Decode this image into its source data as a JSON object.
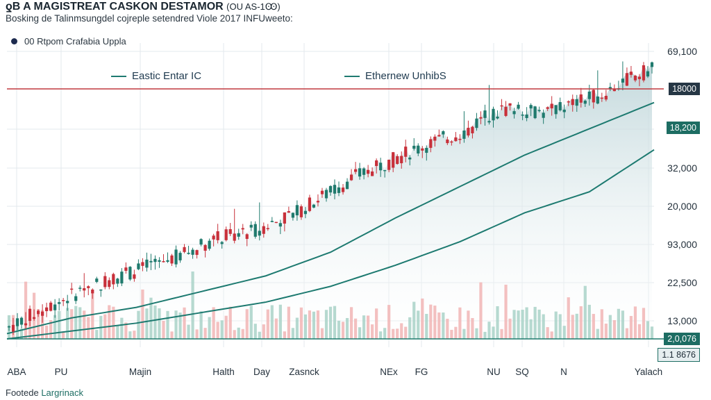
{
  "header": {
    "title": "ƍB A MAGISTREAT CASKON DESTAMOR",
    "title_code": "(OU AS-1Ꙭ)",
    "subtitle": "Bosking de Talinmsungdel cojreple setendred Viole 2017 INFUweeto:"
  },
  "legend_top": {
    "label": "00 Rtpom Crafabia Uppla"
  },
  "footer": {
    "prefix": "Footede ",
    "accent": "Largrinack"
  },
  "colors": {
    "up": "#1f7a6d",
    "down": "#c8303a",
    "line": "#1d7a70",
    "reference": "#c0393f",
    "area_top": "#bfd6da",
    "vol_up": "#a9d2c8",
    "vol_down": "#f1b5b5",
    "grid": "#e3e8ec"
  },
  "chart_data": {
    "type": "candlestick",
    "title": "ƍB A MAGISTREAT CASKON DESTAMOR",
    "ylabel": "",
    "xlabel": "",
    "grid": true,
    "y_tick_labels": [
      "69,100",
      "18000",
      "18,200",
      "32,000",
      "20,000",
      "93,000",
      "22,500",
      "13,000",
      "2,0,076",
      "1.1 8676"
    ],
    "x_tick_labels": [
      "ABA",
      "PU",
      "Majin",
      "Halth",
      "Day",
      "Zasnck",
      "NEx",
      "FG",
      "NU",
      "SQ",
      "N",
      "Yalach"
    ],
    "reference_line": {
      "label": "18000"
    },
    "series": [
      {
        "name": "Eastic Entar IC",
        "type": "line"
      },
      {
        "name": "Ethernew UnhibS",
        "type": "line"
      }
    ],
    "line_legend": [
      "Eastic Entar IC",
      "Ethernew UnhibS"
    ],
    "price_path": [
      [
        0,
        4
      ],
      [
        6,
        12
      ],
      [
        13,
        20
      ],
      [
        20,
        26
      ],
      [
        27,
        32
      ],
      [
        32,
        38
      ],
      [
        38,
        41
      ],
      [
        44,
        47
      ],
      [
        50,
        56
      ],
      [
        54,
        62
      ],
      [
        58,
        66
      ],
      [
        62,
        71
      ],
      [
        66,
        75
      ],
      [
        71,
        79
      ],
      [
        74,
        85
      ],
      [
        78,
        88
      ],
      [
        83,
        86
      ],
      [
        88,
        90
      ],
      [
        92,
        93
      ],
      [
        96,
        99
      ],
      [
        100,
        103
      ]
    ],
    "line1_path": [
      [
        0,
        2
      ],
      [
        10,
        8
      ],
      [
        20,
        12
      ],
      [
        30,
        18
      ],
      [
        40,
        24
      ],
      [
        50,
        33
      ],
      [
        60,
        46
      ],
      [
        70,
        58
      ],
      [
        80,
        70
      ],
      [
        90,
        80
      ],
      [
        100,
        90
      ]
    ],
    "line2_path": [
      [
        0,
        0
      ],
      [
        10,
        3
      ],
      [
        20,
        6
      ],
      [
        30,
        10
      ],
      [
        40,
        14
      ],
      [
        50,
        20
      ],
      [
        60,
        28
      ],
      [
        70,
        37
      ],
      [
        80,
        48
      ],
      [
        90,
        56
      ],
      [
        100,
        72
      ]
    ],
    "candle_count": 155,
    "y_range": [
      0,
      110
    ],
    "x_range": [
      0,
      100
    ]
  }
}
